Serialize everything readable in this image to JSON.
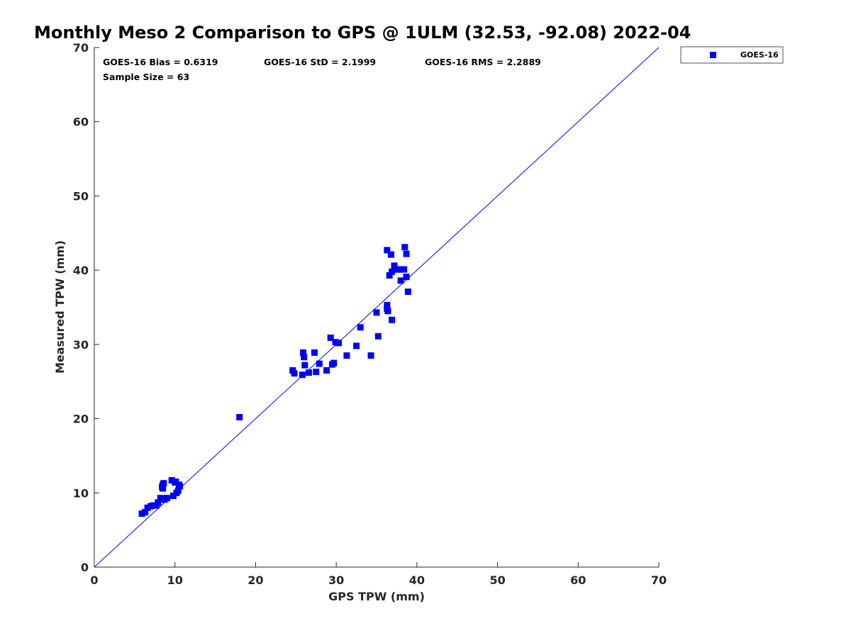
{
  "chart_data": {
    "type": "scatter",
    "title": "Monthly Meso 2 Comparison to GPS @ 1ULM (32.53, -92.08) 2022-04",
    "xlabel": "GPS TPW (mm)",
    "ylabel": "Measured TPW (mm)",
    "xlim": [
      0,
      70
    ],
    "ylim": [
      0,
      70
    ],
    "xticks": [
      "0",
      "10",
      "20",
      "30",
      "40",
      "50",
      "60",
      "70"
    ],
    "yticks": [
      "0",
      "10",
      "20",
      "30",
      "40",
      "50",
      "60",
      "70"
    ],
    "grid": false,
    "legend_position": "top-right outside",
    "annotations": {
      "bias": "GOES-16 Bias = 0.6319",
      "std": "GOES-16 StD = 2.1999",
      "rms": "GOES-16 RMS = 2.2889",
      "sample_size": "Sample Size = 63"
    },
    "reference_line": {
      "x": [
        0,
        70
      ],
      "y": [
        0,
        70
      ],
      "color": "#0000ff"
    },
    "series": [
      {
        "name": "GOES-16",
        "color": "#0000ff",
        "marker": "square",
        "x": [
          5.9,
          6.3,
          6.6,
          7.0,
          7.3,
          7.7,
          7.9,
          8.2,
          8.4,
          8.5,
          8.5,
          8.7,
          9.0,
          8.6,
          9.6,
          9.8,
          10.0,
          10.2,
          10.4,
          10.6,
          10.5,
          10.1,
          18.0,
          24.6,
          24.8,
          25.8,
          25.9,
          26.0,
          26.1,
          26.6,
          27.3,
          27.5,
          27.9,
          28.8,
          29.3,
          29.5,
          29.7,
          29.9,
          30.3,
          31.3,
          32.5,
          33.0,
          34.3,
          35.0,
          35.2,
          36.3,
          36.3,
          36.3,
          36.4,
          36.6,
          36.8,
          36.9,
          36.9,
          37.2,
          37.5,
          37.7,
          38.0,
          38.4,
          38.5,
          38.7,
          38.7,
          38.9,
          38.0
        ],
        "y": [
          7.2,
          7.4,
          8.0,
          8.2,
          8.3,
          8.3,
          8.7,
          9.3,
          10.8,
          11.1,
          10.6,
          9.1,
          9.3,
          11.3,
          11.7,
          9.6,
          11.4,
          10.0,
          10.3,
          10.9,
          11.1,
          11.5,
          20.2,
          26.5,
          26.1,
          25.9,
          28.9,
          28.3,
          27.2,
          26.2,
          28.9,
          26.3,
          27.4,
          26.5,
          30.9,
          27.3,
          27.5,
          30.3,
          30.2,
          28.5,
          29.8,
          32.3,
          28.5,
          34.3,
          31.1,
          42.7,
          35.3,
          34.8,
          34.5,
          39.3,
          42.1,
          39.8,
          33.3,
          40.6,
          40.1,
          40.1,
          38.6,
          40.1,
          43.1,
          42.2,
          39.1,
          37.1,
          40.1
        ]
      }
    ]
  }
}
